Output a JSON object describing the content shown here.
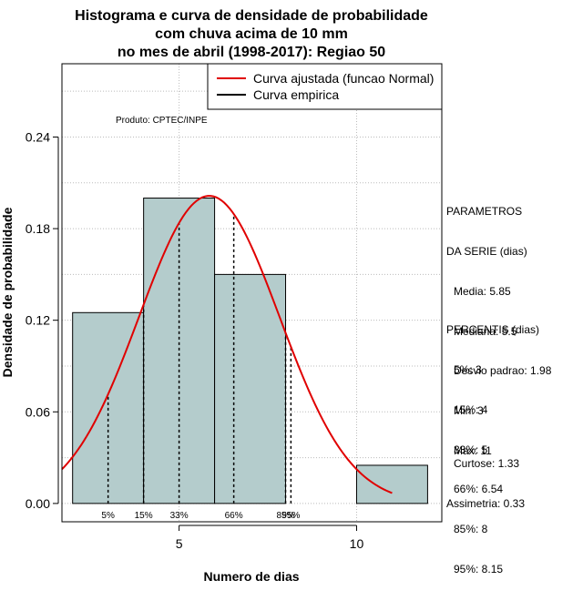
{
  "chart_data": {
    "type": "histogram",
    "title": [
      "Histograma e curva de densidade de probabilidade",
      "com chuva acima de 10 mm",
      "no mes de abril (1998-2017): Regiao 50"
    ],
    "xlabel": "Numero de dias",
    "ylabel": "Densidade de probabilidade",
    "xlim": [
      1.7,
      12.4
    ],
    "ylim": [
      -0.012,
      0.288
    ],
    "x_ticks": [
      5,
      10
    ],
    "y_ticks": [
      0.0,
      0.06,
      0.12,
      0.18,
      0.24
    ],
    "y_tick_labels": [
      "0.00",
      "0.06",
      "0.12",
      "0.18",
      "0.24"
    ],
    "bins": [
      {
        "x0": 2,
        "x1": 4,
        "density": 0.125
      },
      {
        "x0": 4,
        "x1": 6,
        "density": 0.2
      },
      {
        "x0": 6,
        "x1": 8,
        "density": 0.15
      },
      {
        "x0": 8,
        "x1": 10,
        "density": 0.0
      },
      {
        "x0": 10,
        "x1": 12,
        "density": 0.025
      }
    ],
    "bar_color": "#b4cccc",
    "normal_fit": {
      "mean": 5.85,
      "sd": 1.98,
      "from": 1.7,
      "to": 11.0,
      "color": "#e00000"
    },
    "percentile_lines": [
      {
        "label": "5%",
        "x": 3.0
      },
      {
        "label": "15%",
        "x": 4.0
      },
      {
        "label": "33%",
        "x": 5.0
      },
      {
        "label": "66%",
        "x": 6.54
      },
      {
        "label": "85%",
        "x": 8.0
      },
      {
        "label": "95%",
        "x": 8.15
      }
    ],
    "legend": [
      {
        "label": "Curva ajustada (funcao Normal)",
        "color": "#e00000"
      },
      {
        "label": "Curva empirica",
        "color": "#000000"
      }
    ],
    "legend_position": "top-right",
    "annotation": "Produto: CPTEC/INPE",
    "grid": true
  },
  "params": {
    "heading1": "PARAMETROS",
    "heading2": "DA SERIE (dias)",
    "media": "Media: 5.85",
    "mediana": "Mediana: 5.5",
    "desvio": "Desvio padrao: 1.98",
    "min": "Min: 3",
    "max": "Max: 11"
  },
  "percentis": {
    "heading": "PERCENTIS (dias)",
    "p5": "5%: 3",
    "p15": "15%: 4",
    "p33": "33%: 5",
    "p66": "66%: 6.54",
    "p85": "85%: 8",
    "p95": "95%: 8.15"
  },
  "shape": {
    "curtose": "Curtose: 1.33",
    "assimetria": "Assimetria: 0.33"
  }
}
